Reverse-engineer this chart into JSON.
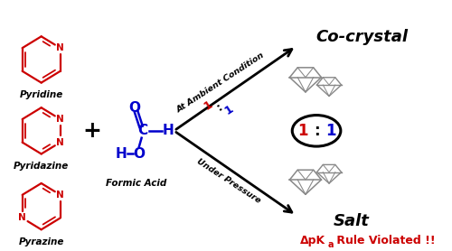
{
  "bg_color": "#ffffff",
  "molecule_color": "#cc0000",
  "formic_color": "#0000cc",
  "pyridine_label": "Pyridine",
  "pyridazine_label": "Pyridazine",
  "pyrazine_label": "Pyrazine",
  "formic_label": "Formic Acid",
  "cocrystal_label": "Co-crystal",
  "salt_label": "Salt",
  "ambient_label": "At Ambient Condition",
  "pressure_label": "Under Pressure",
  "fig_width": 5.0,
  "fig_height": 2.78
}
